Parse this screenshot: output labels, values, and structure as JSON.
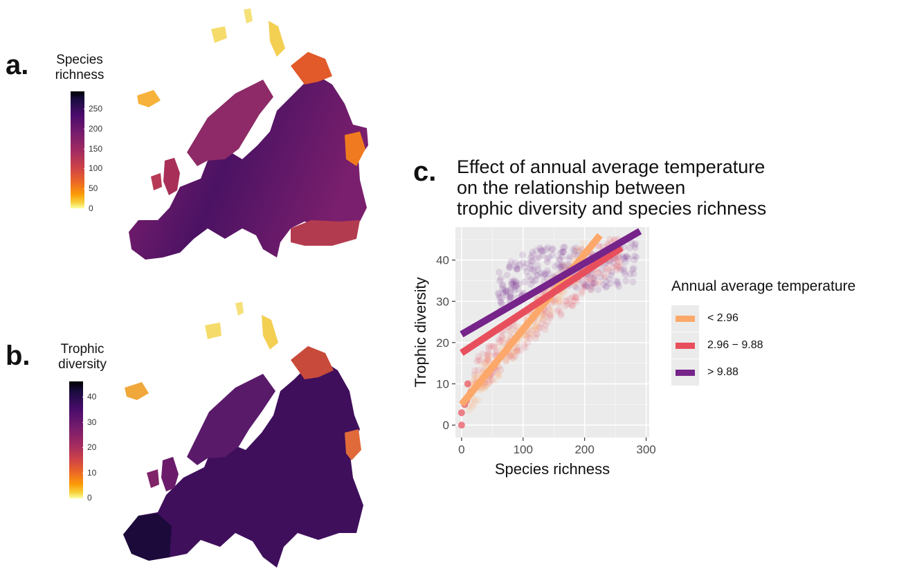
{
  "panel_a": {
    "letter": "a.",
    "legend_title_line1": "Species",
    "legend_title_line2": "richness",
    "legend_ticks": [
      "250",
      "200",
      "150",
      "100",
      "50",
      "0"
    ]
  },
  "panel_b": {
    "letter": "b.",
    "legend_title_line1": "Trophic",
    "legend_title_line2": "diversity",
    "legend_ticks": [
      "40",
      "30",
      "20",
      "10",
      "0"
    ]
  },
  "panel_c": {
    "letter": "c.",
    "title_line1": "Effect of annual average temperature",
    "title_line2": "on the relationship between",
    "title_line3": "trophic diversity and species richness"
  },
  "colors": {
    "cold": "#fca86a",
    "mid": "#e84f5c",
    "warm": "#76238a",
    "panel_bg": "#ebebeb"
  },
  "chart_data": {
    "type": "scatter",
    "title": "Effect of annual average temperature on the relationship between trophic diversity and species richness",
    "xlabel": "Species richness",
    "ylabel": "Trophic diversity",
    "xlim": [
      -10,
      305
    ],
    "ylim": [
      -3,
      48
    ],
    "x_ticks": [
      0,
      100,
      200,
      300
    ],
    "y_ticks": [
      0,
      10,
      20,
      30,
      40
    ],
    "grid": true,
    "legend_title": "Annual average temperature",
    "legend_position": "right",
    "series": [
      {
        "name": "< 2.96",
        "color": "#fca86a",
        "fit_line": [
          [
            0,
            5
          ],
          [
            225,
            46
          ]
        ]
      },
      {
        "name": "2.96 − 9.88",
        "color": "#e84f5c",
        "fit_line": [
          [
            0,
            17.5
          ],
          [
            260,
            43
          ]
        ]
      },
      {
        "name": "> 9.88",
        "color": "#76238a",
        "fit_line": [
          [
            0,
            22
          ],
          [
            290,
            47
          ]
        ]
      }
    ]
  }
}
